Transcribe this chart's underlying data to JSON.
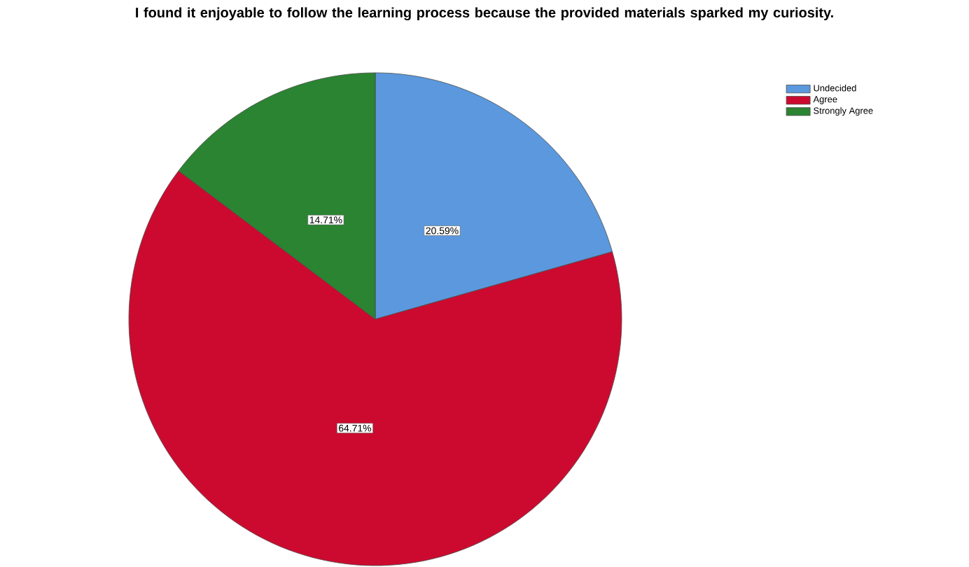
{
  "chart_data": {
    "type": "pie",
    "title": "I found it enjoyable to follow the learning process because the provided materials sparked my curiosity.",
    "categories": [
      "Undecided",
      "Agree",
      "Strongly Agree"
    ],
    "values": [
      20.59,
      64.71,
      14.71
    ],
    "colors": [
      "#5b98dd",
      "#cc0a2f",
      "#2a8431"
    ],
    "value_labels": [
      "20.59%",
      "64.71%",
      "14.71%"
    ],
    "legend": "top right"
  }
}
